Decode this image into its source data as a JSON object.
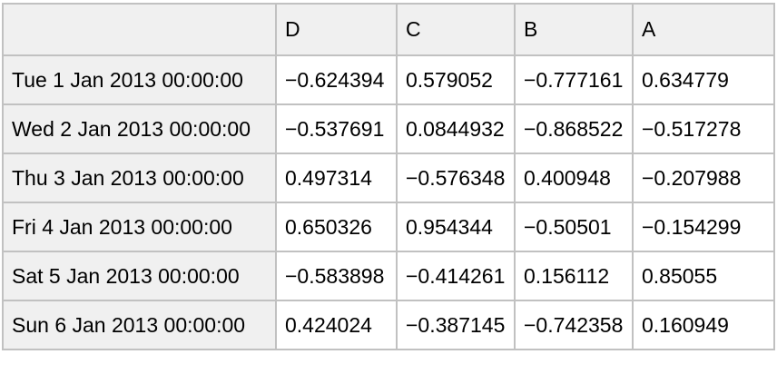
{
  "table": {
    "corner_label": "",
    "columns": [
      "D",
      "C",
      "B",
      "A"
    ],
    "rows": [
      {
        "index": "Tue 1 Jan 2013 00:00:00",
        "values": [
          "−0.624394",
          "0.579052",
          "−0.777161",
          "0.634779"
        ]
      },
      {
        "index": "Wed 2 Jan 2013 00:00:00",
        "values": [
          "−0.537691",
          "0.0844932",
          "−0.868522",
          "−0.517278"
        ]
      },
      {
        "index": "Thu 3 Jan 2013 00:00:00",
        "values": [
          "0.497314",
          "−0.576348",
          "0.400948",
          "−0.207988"
        ]
      },
      {
        "index": "Fri 4 Jan 2013 00:00:00",
        "values": [
          "0.650326",
          "0.954344",
          "−0.50501",
          "−0.154299"
        ]
      },
      {
        "index": "Sat 5 Jan 2013 00:00:00",
        "values": [
          "−0.583898",
          "−0.414261",
          "0.156112",
          "0.85055"
        ]
      },
      {
        "index": "Sun 6 Jan 2013 00:00:00",
        "values": [
          "0.424024",
          "−0.387145",
          "−0.742358",
          "0.160949"
        ]
      }
    ]
  },
  "colors": {
    "header_background": "#f0f0f0",
    "cell_background": "#ffffff",
    "border": "#c1c1c1",
    "text": "#000000"
  },
  "chart_data": {
    "type": "table",
    "title": "",
    "columns": [
      "D",
      "C",
      "B",
      "A"
    ],
    "index_label": "",
    "index": [
      "Tue 1 Jan 2013 00:00:00",
      "Wed 2 Jan 2013 00:00:00",
      "Thu 3 Jan 2013 00:00:00",
      "Fri 4 Jan 2013 00:00:00",
      "Sat 5 Jan 2013 00:00:00",
      "Sun 6 Jan 2013 00:00:00"
    ],
    "rows": [
      [
        -0.624394,
        0.579052,
        -0.777161,
        0.634779
      ],
      [
        -0.537691,
        0.0844932,
        -0.868522,
        -0.517278
      ],
      [
        0.497314,
        -0.576348,
        0.400948,
        -0.207988
      ],
      [
        0.650326,
        0.954344,
        -0.50501,
        -0.154299
      ],
      [
        -0.583898,
        -0.414261,
        0.156112,
        0.85055
      ],
      [
        0.424024,
        -0.387145,
        -0.742358,
        0.160949
      ]
    ]
  }
}
